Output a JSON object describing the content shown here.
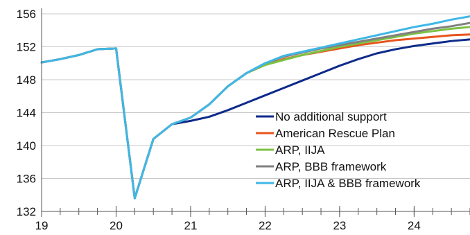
{
  "chart_data": {
    "type": "line",
    "title": "",
    "xlabel": "",
    "ylabel": "",
    "xlim": [
      2019,
      2024.75
    ],
    "ylim": [
      132,
      156
    ],
    "x_ticks": [
      2019,
      2020,
      2021,
      2022,
      2023,
      2024
    ],
    "x_tick_labels": [
      "19",
      "20",
      "21",
      "22",
      "23",
      "24"
    ],
    "x_minor_step": 0.25,
    "y_ticks": [
      132,
      136,
      140,
      144,
      148,
      152,
      156
    ],
    "y_tick_labels": [
      "132",
      "136",
      "140",
      "144",
      "148",
      "152",
      "156"
    ],
    "grid": "horizontal",
    "legend_position": "bottom-right",
    "x": [
      2019,
      2019.25,
      2019.5,
      2019.75,
      2020,
      2020.25,
      2020.5,
      2020.75,
      2021,
      2021.25,
      2021.5,
      2021.75,
      2022,
      2022.25,
      2022.5,
      2022.75,
      2023,
      2023.25,
      2023.5,
      2023.75,
      2024,
      2024.25,
      2024.5,
      2024.75
    ],
    "series": [
      {
        "name": "No additional support",
        "color": "#0d2a8a",
        "values": [
          150.1,
          150.5,
          151.0,
          151.7,
          151.8,
          133.6,
          140.8,
          142.6,
          143.0,
          143.5,
          144.3,
          145.2,
          146.1,
          147.0,
          147.9,
          148.8,
          149.7,
          150.5,
          151.2,
          151.7,
          152.1,
          152.4,
          152.7,
          152.9
        ]
      },
      {
        "name": "American Rescue Plan",
        "color": "#e8541c",
        "values": [
          150.1,
          150.5,
          151.0,
          151.7,
          151.8,
          133.6,
          140.8,
          142.6,
          143.4,
          145.0,
          147.2,
          148.8,
          149.8,
          150.5,
          151.0,
          151.4,
          151.8,
          152.2,
          152.5,
          152.8,
          153.0,
          153.2,
          153.4,
          153.5
        ]
      },
      {
        "name": "ARP, IIJA",
        "color": "#7cc242",
        "values": [
          150.1,
          150.5,
          151.0,
          151.7,
          151.8,
          133.6,
          140.8,
          142.6,
          143.4,
          145.0,
          147.2,
          148.8,
          149.8,
          150.4,
          151.0,
          151.5,
          152.0,
          152.4,
          152.8,
          153.2,
          153.6,
          153.9,
          154.2,
          154.4
        ]
      },
      {
        "name": "ARP, BBB framework",
        "color": "#808080",
        "values": [
          150.1,
          150.5,
          151.0,
          151.7,
          151.8,
          133.6,
          140.8,
          142.6,
          143.4,
          145.0,
          147.2,
          148.8,
          150.0,
          150.8,
          151.3,
          151.8,
          152.2,
          152.6,
          153.0,
          153.4,
          153.8,
          154.2,
          154.5,
          154.9
        ]
      },
      {
        "name": "ARP, IIJA & BBB framework",
        "color": "#3fb7e6",
        "values": [
          150.1,
          150.5,
          151.0,
          151.7,
          151.8,
          133.6,
          140.8,
          142.6,
          143.4,
          145.0,
          147.2,
          148.8,
          150.0,
          150.9,
          151.4,
          151.9,
          152.4,
          152.9,
          153.4,
          153.9,
          154.4,
          154.8,
          155.3,
          155.7
        ]
      }
    ]
  }
}
